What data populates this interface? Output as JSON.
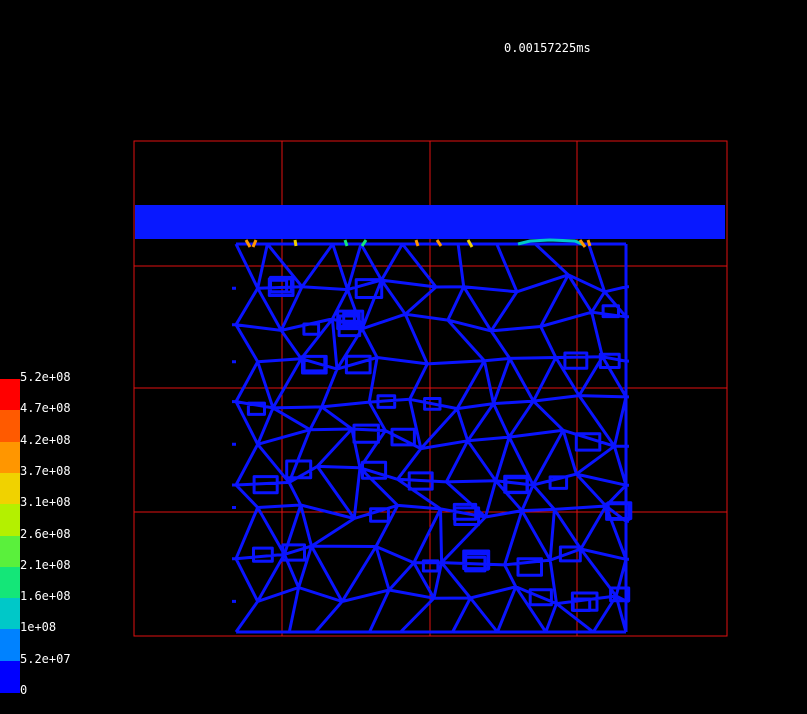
{
  "time_label": "0.00157225ms",
  "legend": {
    "labels": [
      "5.2e+08",
      "4.7e+08",
      "4.2e+08",
      "3.7e+08",
      "3.1e+08",
      "2.6e+08",
      "2.1e+08",
      "1.6e+08",
      "1e+08",
      "5.2e+07",
      "0"
    ],
    "colors": [
      "#ff0000",
      "#ff5a00",
      "#ff9600",
      "#f0d200",
      "#b4f000",
      "#5af03c",
      "#14e678",
      "#00c8c8",
      "#0082ff",
      "#0000ff"
    ]
  },
  "colors": {
    "mesh": "#0a14ff",
    "grid": "#e01010",
    "plate": "#0818ff",
    "background": "#000000"
  }
}
